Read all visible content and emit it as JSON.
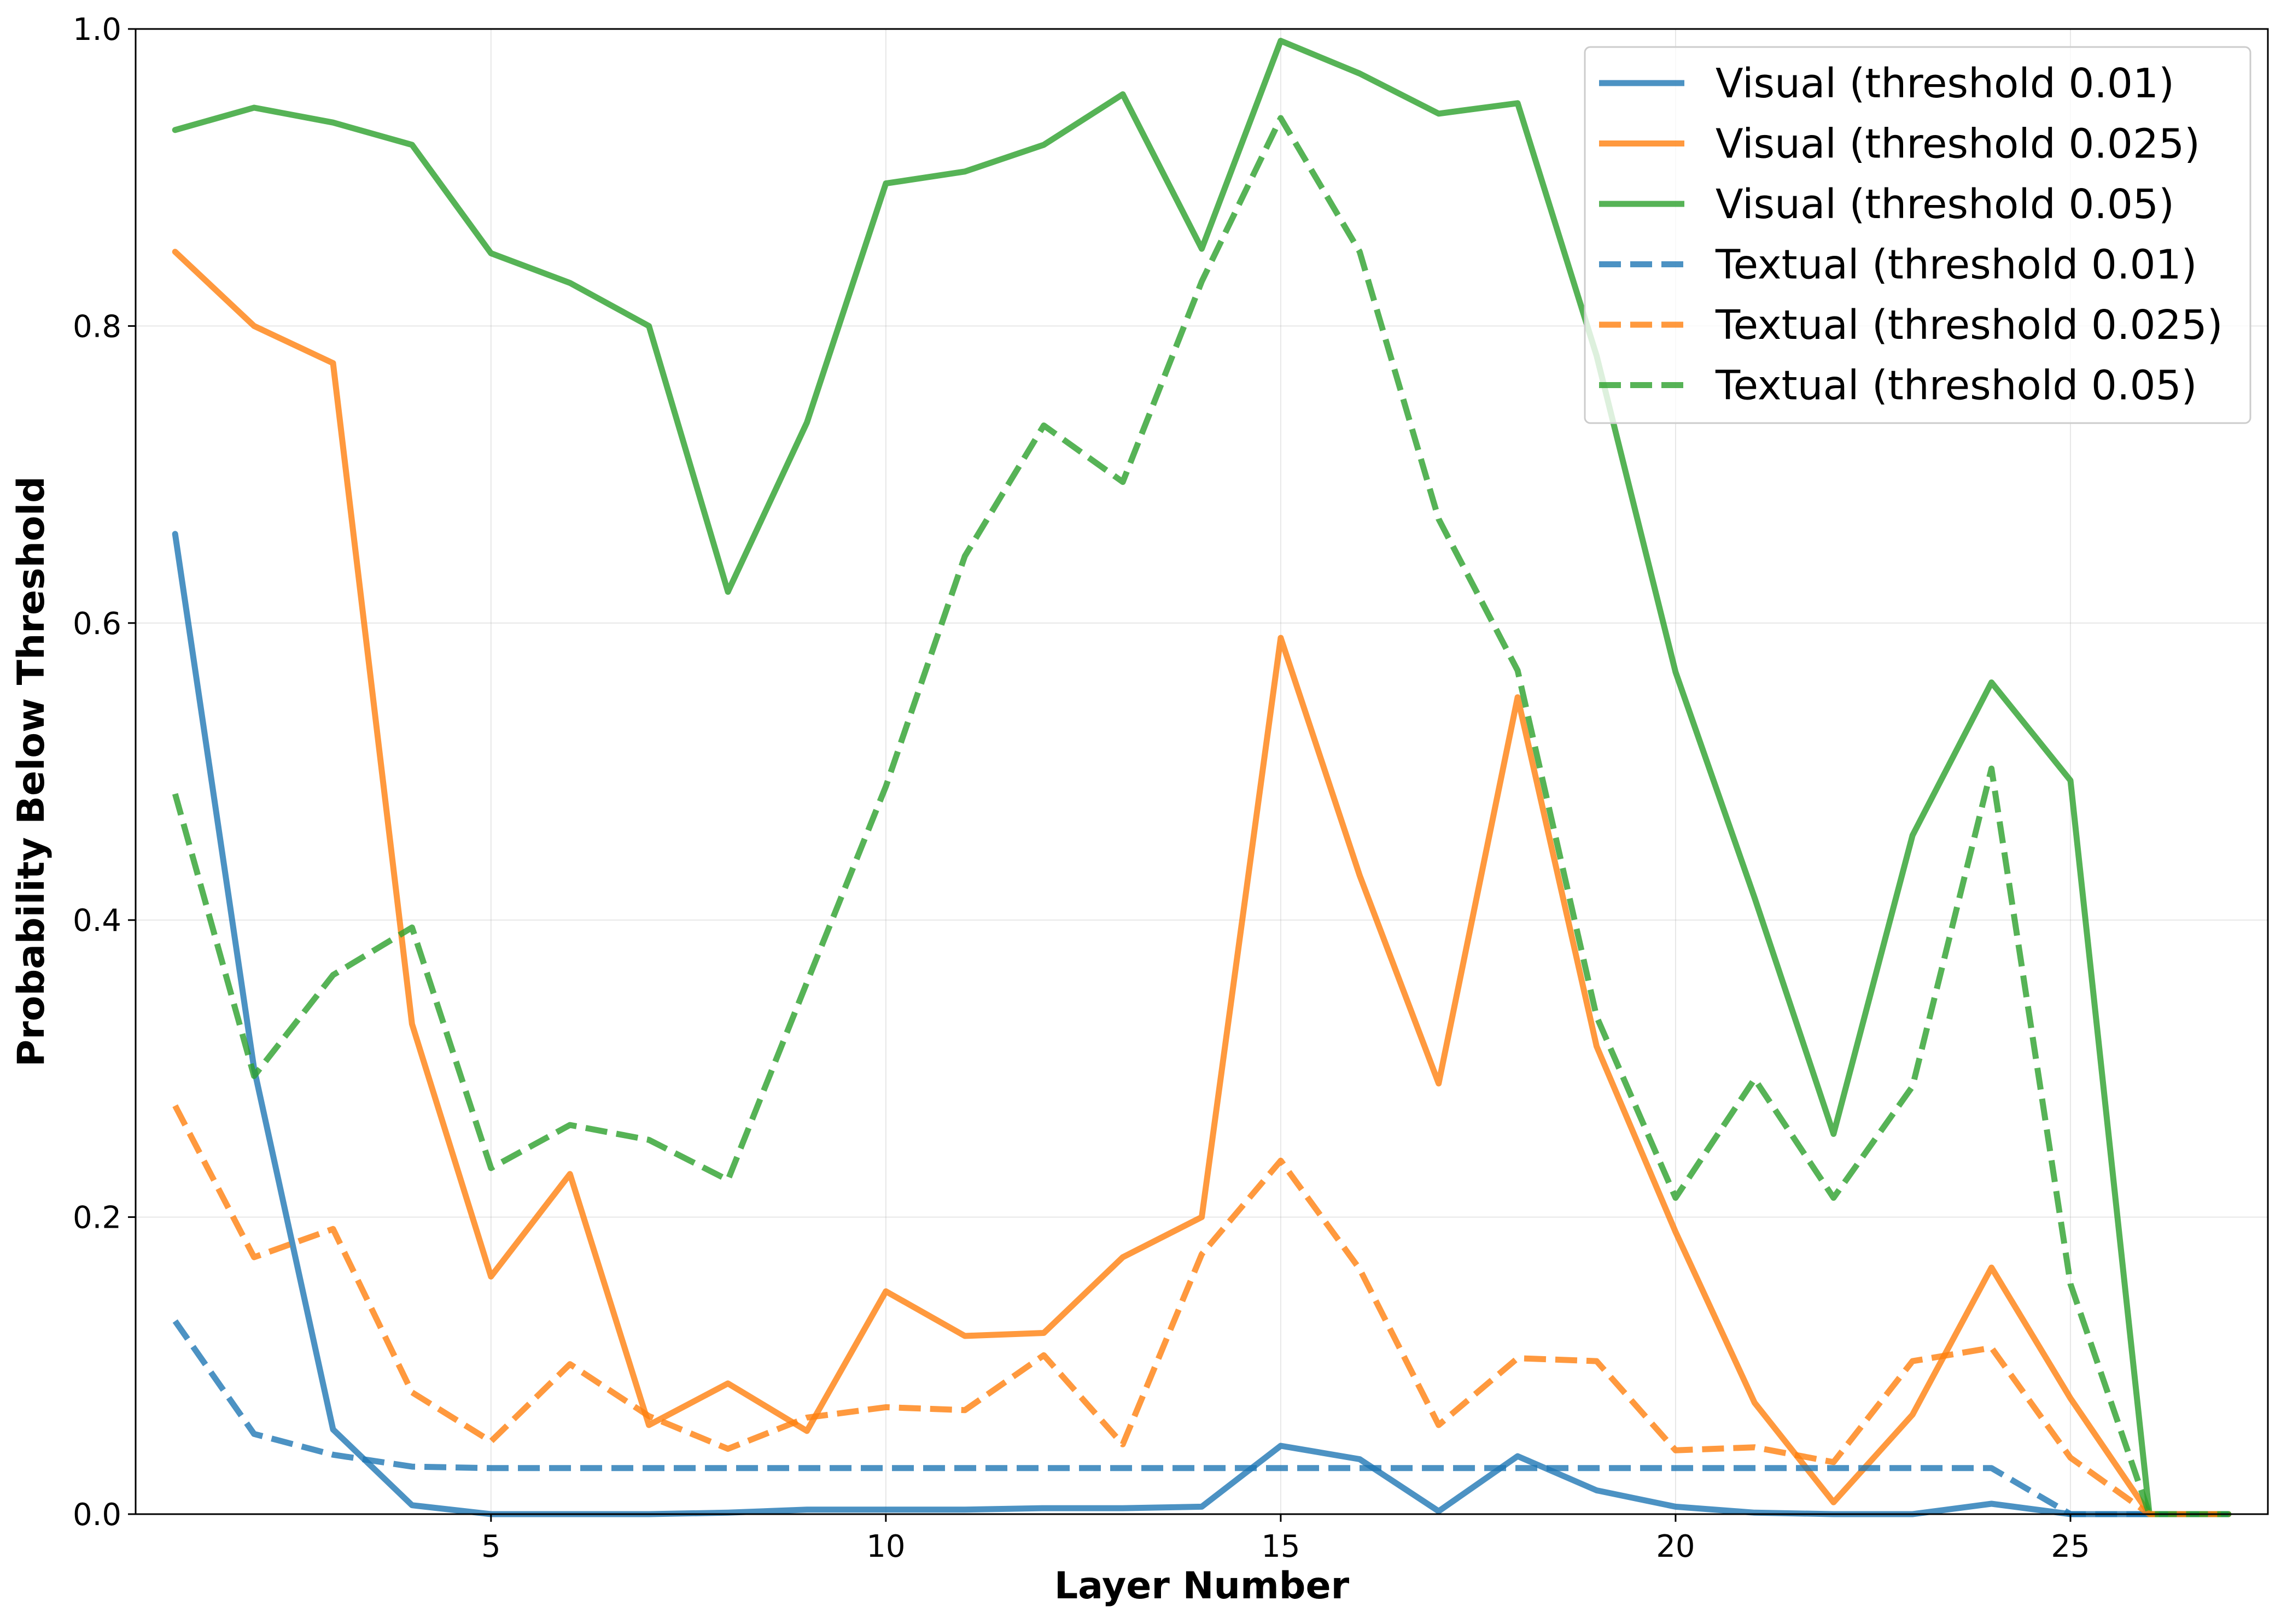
{
  "chart_data": {
    "type": "line",
    "title": "",
    "xlabel": "Layer Number",
    "ylabel": "Probability Below Threshold",
    "xlim": [
      0.5,
      27.5
    ],
    "ylim": [
      0.0,
      1.0
    ],
    "xticks": [
      5,
      10,
      15,
      20,
      25
    ],
    "yticks": [
      0.0,
      0.2,
      0.4,
      0.6,
      0.8,
      1.0
    ],
    "ytick_labels": [
      "0.0",
      "0.2",
      "0.4",
      "0.6",
      "0.8",
      "1.0"
    ],
    "grid": true,
    "legend_position": "top-right",
    "x": [
      1,
      2,
      3,
      4,
      5,
      6,
      7,
      8,
      9,
      10,
      11,
      12,
      13,
      14,
      15,
      16,
      17,
      18,
      19,
      20,
      21,
      22,
      23,
      24,
      25,
      26,
      27
    ],
    "series": [
      {
        "name": "Visual (threshold 0.01)",
        "color": "#1f77b4",
        "style": "solid",
        "values": [
          0.66,
          0.3,
          0.057,
          0.006,
          0.0,
          0.0,
          0.0,
          0.001,
          0.003,
          0.003,
          0.003,
          0.004,
          0.004,
          0.005,
          0.046,
          0.037,
          0.002,
          0.039,
          0.016,
          0.005,
          0.001,
          0.0,
          0.0,
          0.007,
          0.0,
          0.0,
          0.0
        ]
      },
      {
        "name": "Visual (threshold 0.025)",
        "color": "#ff7f0e",
        "style": "solid",
        "values": [
          0.85,
          0.8,
          0.775,
          0.33,
          0.16,
          0.229,
          0.06,
          0.088,
          0.056,
          0.15,
          0.12,
          0.122,
          0.173,
          0.2,
          0.59,
          0.43,
          0.29,
          0.55,
          0.315,
          0.19,
          0.075,
          0.008,
          0.067,
          0.166,
          0.078,
          0.0,
          0.0
        ]
      },
      {
        "name": "Visual (threshold 0.05)",
        "color": "#2ca02c",
        "style": "solid",
        "values": [
          0.932,
          0.947,
          0.937,
          0.922,
          0.849,
          0.829,
          0.8,
          0.621,
          0.735,
          0.896,
          0.904,
          0.922,
          0.956,
          0.852,
          0.992,
          0.97,
          0.943,
          0.95,
          0.78,
          0.567,
          0.415,
          0.256,
          0.457,
          0.56,
          0.494,
          0.0,
          0.0
        ]
      },
      {
        "name": "Textual (threshold 0.01)",
        "color": "#1f77b4",
        "style": "dashed",
        "values": [
          0.13,
          0.054,
          0.04,
          0.032,
          0.031,
          0.031,
          0.031,
          0.031,
          0.031,
          0.031,
          0.031,
          0.031,
          0.031,
          0.031,
          0.031,
          0.031,
          0.031,
          0.031,
          0.031,
          0.031,
          0.031,
          0.031,
          0.031,
          0.031,
          0.0,
          0.0,
          0.0
        ]
      },
      {
        "name": "Textual (threshold 0.025)",
        "color": "#ff7f0e",
        "style": "dashed",
        "values": [
          0.275,
          0.173,
          0.192,
          0.082,
          0.049,
          0.101,
          0.066,
          0.044,
          0.065,
          0.072,
          0.07,
          0.107,
          0.047,
          0.175,
          0.238,
          0.165,
          0.06,
          0.105,
          0.103,
          0.043,
          0.045,
          0.035,
          0.103,
          0.112,
          0.038,
          0.0,
          0.0
        ]
      },
      {
        "name": "Textual (threshold 0.05)",
        "color": "#2ca02c",
        "style": "dashed",
        "values": [
          0.485,
          0.295,
          0.363,
          0.395,
          0.233,
          0.262,
          0.252,
          0.225,
          0.358,
          0.49,
          0.645,
          0.733,
          0.695,
          0.83,
          0.94,
          0.85,
          0.67,
          0.568,
          0.335,
          0.213,
          0.293,
          0.213,
          0.288,
          0.502,
          0.155,
          0.0,
          0.0
        ]
      }
    ]
  }
}
